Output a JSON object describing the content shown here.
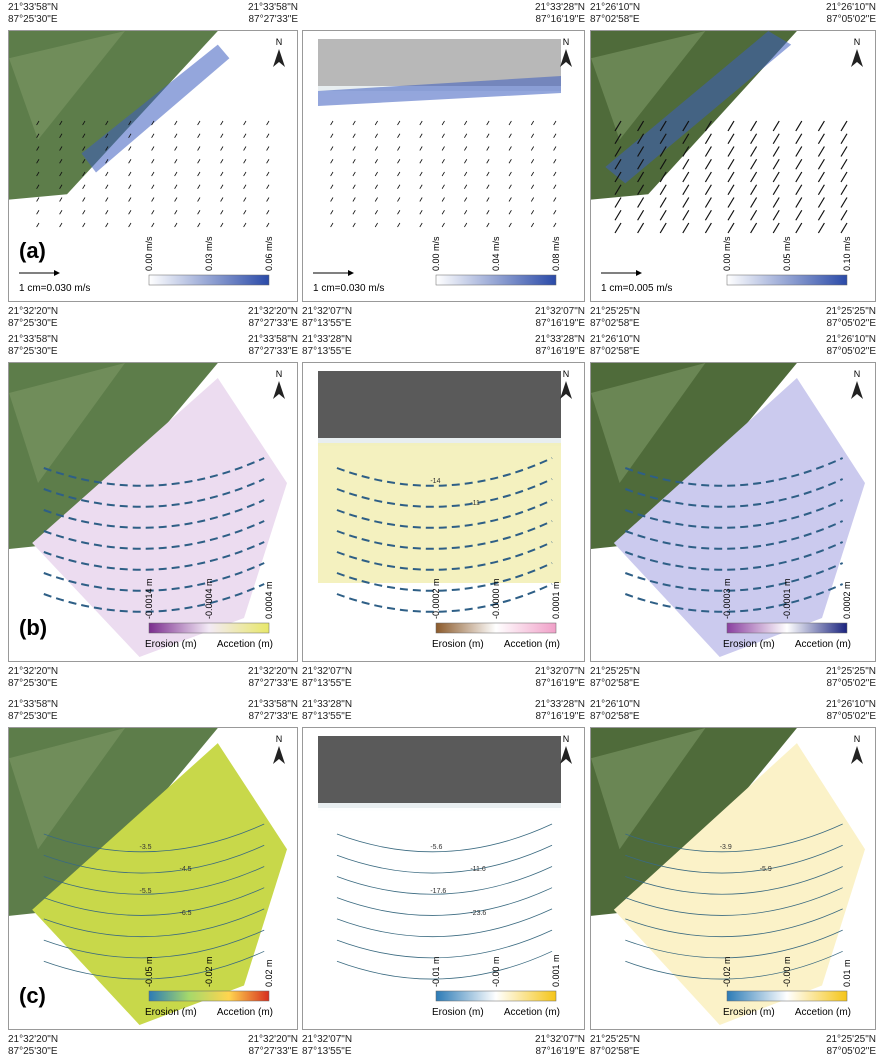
{
  "north": "N",
  "legend_labels": {
    "erosion": "Erosion (m)",
    "accretion": "Accetion (m)"
  },
  "rows": [
    {
      "letter": "(a)",
      "panels": [
        {
          "top_left": {
            "lat": "21°33'58\"N",
            "lon": "87°25'30\"E"
          },
          "top_right": {
            "lat": "21°33'58\"N",
            "lon": "87°27'33\"E"
          },
          "bottom_left": {
            "lat": "21°32'20\"N",
            "lon": "87°25'30\"E"
          },
          "bottom_right": {
            "lat": "21°32'20\"N",
            "lon": "87°27'33\"E"
          },
          "colorbar_ticks": [
            "0.00 m/s",
            "0.03 m/s",
            "0.06 m/s"
          ],
          "scale": "1 cm=0.030 m/s"
        },
        {
          "top_right": {
            "lat": "21°33'28\"N",
            "lon": "87°16'19\"E"
          },
          "bottom_left": {
            "lat": "21°32'07\"N",
            "lon": "87°13'55\"E"
          },
          "bottom_right": {
            "lat": "21°32'07\"N",
            "lon": "87°16'19\"E"
          },
          "colorbar_ticks": [
            "0.00 m/s",
            "0.04 m/s",
            "0.08 m/s"
          ],
          "scale": "1 cm=0.030 m/s"
        },
        {
          "top_left": {
            "lat": "21°26'10\"N",
            "lon": "87°02'58\"E"
          },
          "top_right": {
            "lat": "21°26'10\"N",
            "lon": "87°05'02\"E"
          },
          "bottom_left": {
            "lat": "21°25'25\"N",
            "lon": "87°02'58\"E"
          },
          "bottom_right": {
            "lat": "21°25'25\"N",
            "lon": "87°05'02\"E"
          },
          "colorbar_ticks": [
            "0.00 m/s",
            "0.05 m/s",
            "0.10 m/s"
          ],
          "scale": "1 cm=0.005 m/s"
        }
      ]
    },
    {
      "letter": "(b)",
      "panels": [
        {
          "top_left": {
            "lat": "21°33'58\"N",
            "lon": "87°25'30\"E"
          },
          "top_right": {
            "lat": "21°33'58\"N",
            "lon": "87°27'33\"E"
          },
          "bottom_left": {
            "lat": "21°32'20\"N",
            "lon": "87°25'30\"E"
          },
          "bottom_right": {
            "lat": "21°32'20\"N",
            "lon": "87°27'33\"E"
          },
          "colorbar_ticks": [
            "-0.0014 m",
            "-0.0004 m",
            "0.0004 m"
          ]
        },
        {
          "top_left": {
            "lat": "21°33'28\"N",
            "lon": "87°13'55\"E"
          },
          "top_right": {
            "lat": "21°33'28\"N",
            "lon": "87°16'19\"E"
          },
          "bottom_left": {
            "lat": "21°32'07\"N",
            "lon": "87°13'55\"E"
          },
          "bottom_right": {
            "lat": "21°32'07\"N",
            "lon": "87°16'19\"E"
          },
          "colorbar_ticks": [
            "-0.0002 m",
            "-0.0000 m",
            "0.0001 m"
          ],
          "contour_labels": [
            "-14",
            "-11"
          ]
        },
        {
          "top_left": {
            "lat": "21°26'10\"N",
            "lon": "87°02'58\"E"
          },
          "top_right": {
            "lat": "21°26'10\"N",
            "lon": "87°05'02\"E"
          },
          "bottom_left": {
            "lat": "21°25'25\"N",
            "lon": "87°02'58\"E"
          },
          "bottom_right": {
            "lat": "21°25'25\"N",
            "lon": "87°05'02\"E"
          },
          "colorbar_ticks": [
            "-0.0003 m",
            "-0.0001 m",
            "0.0002 m"
          ]
        }
      ]
    },
    {
      "letter": "(c)",
      "panels": [
        {
          "top_left": {
            "lat": "21°33'58\"N",
            "lon": "87°25'30\"E"
          },
          "top_right": {
            "lat": "21°33'58\"N",
            "lon": "87°27'33\"E"
          },
          "bottom_left": {
            "lat": "21°32'20\"N",
            "lon": "87°25'30\"E"
          },
          "bottom_right": {
            "lat": "21°32'20\"N",
            "lon": "87°27'33\"E"
          },
          "colorbar_ticks": [
            "-0.05 m",
            "-0.02 m",
            "0.02 m"
          ],
          "contour_labels": [
            "-3.5",
            "-4.5",
            "-5.5",
            "-6.5"
          ]
        },
        {
          "top_left": {
            "lat": "21°33'28\"N",
            "lon": "87°13'55\"E"
          },
          "top_right": {
            "lat": "21°33'28\"N",
            "lon": "87°16'19\"E"
          },
          "bottom_left": {
            "lat": "21°32'07\"N",
            "lon": "87°13'55\"E"
          },
          "bottom_right": {
            "lat": "21°32'07\"N",
            "lon": "87°16'19\"E"
          },
          "colorbar_ticks": [
            "-0.01 m",
            "-0.00 m",
            "0.001 m"
          ],
          "contour_labels": [
            "-5.6",
            "-11.6",
            "-17.6",
            "-23.6"
          ]
        },
        {
          "top_left": {
            "lat": "21°26'10\"N",
            "lon": "87°02'58\"E"
          },
          "top_right": {
            "lat": "21°26'10\"N",
            "lon": "87°05'02\"E"
          },
          "bottom_left": {
            "lat": "21°25'25\"N",
            "lon": "87°02'58\"E"
          },
          "bottom_right": {
            "lat": "21°25'25\"N",
            "lon": "87°05'02\"E"
          },
          "colorbar_ticks": [
            "-0.02 m",
            "-0.00 m",
            "0.01 m"
          ],
          "contour_labels": [
            "-3.9",
            "-5.9"
          ]
        }
      ]
    }
  ]
}
